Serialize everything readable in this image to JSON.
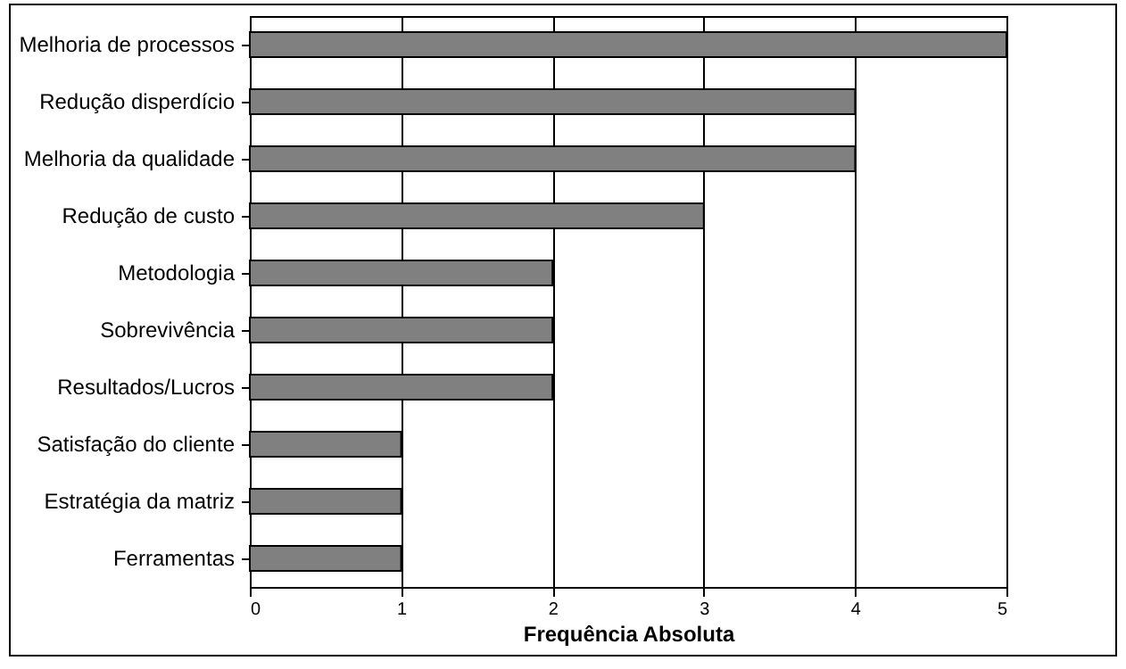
{
  "chart_data": {
    "type": "bar",
    "orientation": "horizontal",
    "xlabel": "Frequência Absoluta",
    "categories": [
      "Melhoria de processos",
      "Redução disperdício",
      "Melhoria da qualidade",
      "Redução de custo",
      "Metodologia",
      "Sobrevivência",
      "Resultados/Lucros",
      "Satisfação do cliente",
      "Estratégia da matriz",
      "Ferramentas"
    ],
    "values": [
      5,
      4,
      4,
      3,
      2,
      2,
      2,
      1,
      1,
      1
    ],
    "color": "#808080",
    "xlim": [
      0,
      5
    ],
    "xticks": [
      0,
      1,
      2,
      3,
      4,
      5
    ],
    "grid": "x"
  }
}
